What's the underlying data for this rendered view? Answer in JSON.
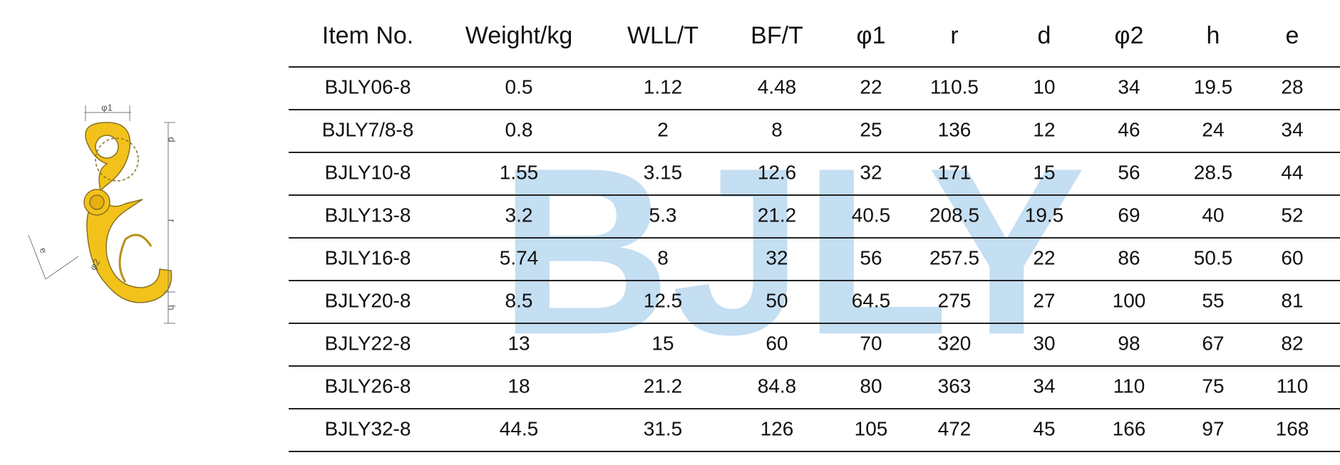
{
  "watermark": "BJLY",
  "diagram": {
    "labels": [
      "φ1",
      "d",
      "r",
      "e",
      "φ2",
      "h"
    ]
  },
  "table": {
    "header": [
      "Item No.",
      "Weight/kg",
      "WLL/T",
      "BF/T",
      "φ1",
      "r",
      "d",
      "φ2",
      "h",
      "e"
    ],
    "rows": [
      [
        "BJLY06-8",
        "0.5",
        "1.12",
        "4.48",
        "22",
        "110.5",
        "10",
        "34",
        "19.5",
        "28"
      ],
      [
        "BJLY7/8-8",
        "0.8",
        "2",
        "8",
        "25",
        "136",
        "12",
        "46",
        "24",
        "34"
      ],
      [
        "BJLY10-8",
        "1.55",
        "3.15",
        "12.6",
        "32",
        "171",
        "15",
        "56",
        "28.5",
        "44"
      ],
      [
        "BJLY13-8",
        "3.2",
        "5.3",
        "21.2",
        "40.5",
        "208.5",
        "19.5",
        "69",
        "40",
        "52"
      ],
      [
        "BJLY16-8",
        "5.74",
        "8",
        "32",
        "56",
        "257.5",
        "22",
        "86",
        "50.5",
        "60"
      ],
      [
        "BJLY20-8",
        "8.5",
        "12.5",
        "50",
        "64.5",
        "275",
        "27",
        "100",
        "55",
        "81"
      ],
      [
        "BJLY22-8",
        "13",
        "15",
        "60",
        "70",
        "320",
        "30",
        "98",
        "67",
        "82"
      ],
      [
        "BJLY26-8",
        "18",
        "21.2",
        "84.8",
        "80",
        "363",
        "34",
        "110",
        "75",
        "110"
      ],
      [
        "BJLY32-8",
        "44.5",
        "31.5",
        "126",
        "105",
        "472",
        "45",
        "166",
        "97",
        "168"
      ]
    ]
  }
}
